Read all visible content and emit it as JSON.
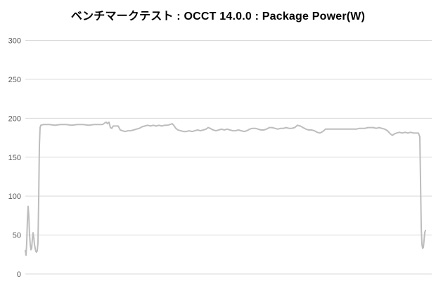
{
  "title": "ベンチマークテスト : OCCT 14.0.0 : Package Power(W)",
  "colors": {
    "background": "#ffffff",
    "title": "#000000",
    "grid": "#d9d9d9",
    "tick_label": "#595959",
    "series": "#bdbdbd"
  },
  "chart_data": {
    "type": "line",
    "title": "ベンチマークテスト : OCCT 14.0.0 : Package Power(W)",
    "xlabel": "",
    "ylabel": "",
    "ylim": [
      0,
      300
    ],
    "yticks": [
      300,
      250,
      200,
      150,
      100,
      50,
      0
    ],
    "xticks": [],
    "x_unit": "px",
    "grid": "horizontal-only",
    "legend": "none",
    "series": [
      {
        "name": "Package Power (W)",
        "color": "#bdbdbd",
        "stroke_width": 2,
        "points": [
          [
            36,
            30
          ],
          [
            37,
            24
          ],
          [
            38,
            40
          ],
          [
            39,
            70
          ],
          [
            40,
            87
          ],
          [
            41,
            74
          ],
          [
            42,
            50
          ],
          [
            43,
            38
          ],
          [
            44,
            31
          ],
          [
            45,
            33
          ],
          [
            46,
            45
          ],
          [
            47,
            53
          ],
          [
            48,
            47
          ],
          [
            49,
            38
          ],
          [
            50,
            33
          ],
          [
            51,
            29
          ],
          [
            52,
            28
          ],
          [
            53,
            30
          ],
          [
            54,
            40
          ],
          [
            55,
            95
          ],
          [
            56,
            165
          ],
          [
            57,
            188
          ],
          [
            58,
            191
          ],
          [
            62,
            192
          ],
          [
            70,
            192
          ],
          [
            78,
            191
          ],
          [
            86,
            192
          ],
          [
            94,
            192
          ],
          [
            102,
            191
          ],
          [
            110,
            192
          ],
          [
            118,
            192
          ],
          [
            126,
            191
          ],
          [
            134,
            192
          ],
          [
            142,
            192
          ],
          [
            146,
            192
          ],
          [
            149,
            194
          ],
          [
            151,
            195
          ],
          [
            153,
            193
          ],
          [
            155,
            195
          ],
          [
            157,
            188
          ],
          [
            159,
            187
          ],
          [
            161,
            190
          ],
          [
            164,
            190
          ],
          [
            168,
            190
          ],
          [
            171,
            185
          ],
          [
            174,
            184
          ],
          [
            178,
            183
          ],
          [
            182,
            184
          ],
          [
            186,
            184
          ],
          [
            190,
            185
          ],
          [
            194,
            186
          ],
          [
            198,
            187
          ],
          [
            202,
            189
          ],
          [
            206,
            190
          ],
          [
            210,
            191
          ],
          [
            214,
            190
          ],
          [
            218,
            191
          ],
          [
            222,
            190
          ],
          [
            226,
            191
          ],
          [
            230,
            190
          ],
          [
            234,
            191
          ],
          [
            238,
            191
          ],
          [
            242,
            192
          ],
          [
            245,
            193
          ],
          [
            247,
            191
          ],
          [
            250,
            187
          ],
          [
            253,
            185
          ],
          [
            257,
            184
          ],
          [
            261,
            183
          ],
          [
            265,
            183
          ],
          [
            269,
            184
          ],
          [
            273,
            183
          ],
          [
            277,
            184
          ],
          [
            281,
            185
          ],
          [
            285,
            184
          ],
          [
            289,
            185
          ],
          [
            293,
            186
          ],
          [
            296,
            188
          ],
          [
            299,
            187
          ],
          [
            303,
            185
          ],
          [
            307,
            184
          ],
          [
            311,
            185
          ],
          [
            315,
            186
          ],
          [
            319,
            185
          ],
          [
            323,
            186
          ],
          [
            327,
            185
          ],
          [
            331,
            184
          ],
          [
            335,
            184
          ],
          [
            339,
            185
          ],
          [
            343,
            184
          ],
          [
            347,
            183
          ],
          [
            351,
            184
          ],
          [
            355,
            186
          ],
          [
            359,
            187
          ],
          [
            363,
            187
          ],
          [
            367,
            186
          ],
          [
            371,
            185
          ],
          [
            375,
            185
          ],
          [
            379,
            186
          ],
          [
            383,
            188
          ],
          [
            387,
            188
          ],
          [
            391,
            187
          ],
          [
            395,
            186
          ],
          [
            399,
            187
          ],
          [
            403,
            187
          ],
          [
            407,
            188
          ],
          [
            411,
            187
          ],
          [
            415,
            187
          ],
          [
            419,
            188
          ],
          [
            423,
            191
          ],
          [
            427,
            190
          ],
          [
            431,
            188
          ],
          [
            435,
            186
          ],
          [
            439,
            185
          ],
          [
            443,
            185
          ],
          [
            447,
            184
          ],
          [
            451,
            182
          ],
          [
            455,
            181
          ],
          [
            459,
            183
          ],
          [
            463,
            186
          ],
          [
            467,
            186
          ],
          [
            471,
            186
          ],
          [
            475,
            186
          ],
          [
            479,
            186
          ],
          [
            483,
            186
          ],
          [
            487,
            186
          ],
          [
            491,
            186
          ],
          [
            495,
            186
          ],
          [
            499,
            186
          ],
          [
            503,
            186
          ],
          [
            507,
            186
          ],
          [
            511,
            187
          ],
          [
            515,
            187
          ],
          [
            519,
            187
          ],
          [
            523,
            188
          ],
          [
            527,
            188
          ],
          [
            531,
            188
          ],
          [
            535,
            187
          ],
          [
            539,
            188
          ],
          [
            543,
            187
          ],
          [
            547,
            186
          ],
          [
            551,
            184
          ],
          [
            555,
            180
          ],
          [
            558,
            178
          ],
          [
            561,
            180
          ],
          [
            564,
            181
          ],
          [
            568,
            182
          ],
          [
            572,
            181
          ],
          [
            576,
            182
          ],
          [
            580,
            181
          ],
          [
            584,
            182
          ],
          [
            588,
            181
          ],
          [
            592,
            181
          ],
          [
            595,
            181
          ],
          [
            597,
            176
          ],
          [
            598,
            120
          ],
          [
            599,
            60
          ],
          [
            600,
            38
          ],
          [
            601,
            33
          ],
          [
            602,
            34
          ],
          [
            603,
            43
          ],
          [
            604,
            53
          ],
          [
            605,
            56
          ]
        ]
      }
    ]
  }
}
